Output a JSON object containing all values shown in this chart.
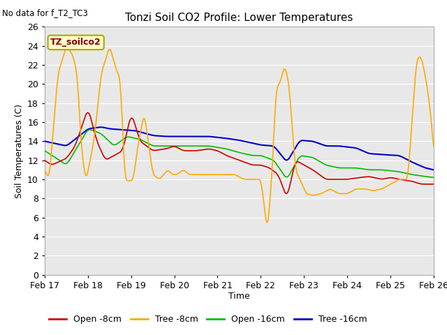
{
  "title": "Tonzi Soil CO2 Profile: Lower Temperatures",
  "subtitle": "No data for f_T2_TC3",
  "xlabel": "Time",
  "ylabel": "Soil Temperatures (C)",
  "legend_label": "TZ_soilco2",
  "ylim": [
    0,
    26
  ],
  "yticks": [
    0,
    2,
    4,
    6,
    8,
    10,
    12,
    14,
    16,
    18,
    20,
    22,
    24,
    26
  ],
  "x_tick_labels": [
    "Feb 17",
    "Feb 18",
    "Feb 19",
    "Feb 20",
    "Feb 21",
    "Feb 22",
    "Feb 23",
    "Feb 24",
    "Feb 25",
    "Feb 26"
  ],
  "fig_bg_color": "#ffffff",
  "plot_bg_color": "#e8e8e8",
  "grid_color": "#ffffff",
  "line_colors": {
    "open_8": "#cc0000",
    "tree_8": "#ffaa00",
    "open_16": "#00bb00",
    "tree_16": "#0000cc"
  },
  "legend_entries": [
    {
      "label": "Open -8cm",
      "color": "#cc0000"
    },
    {
      "label": "Tree -8cm",
      "color": "#ffaa00"
    },
    {
      "label": "Open -16cm",
      "color": "#00bb00"
    },
    {
      "label": "Tree -16cm",
      "color": "#0000cc"
    }
  ],
  "open_8_x": [
    0,
    0.15,
    0.3,
    0.5,
    0.7,
    1.0,
    1.2,
    1.4,
    1.6,
    1.8,
    2.0,
    2.2,
    2.5,
    2.8,
    3.0,
    3.2,
    3.5,
    3.8,
    4.0,
    4.2,
    4.5,
    4.8,
    5.0,
    5.2,
    5.4,
    5.6,
    5.8,
    6.0,
    6.2,
    6.5,
    6.8,
    7.0,
    7.3,
    7.5,
    7.8,
    8.0,
    8.2,
    8.5,
    8.7,
    9.0
  ],
  "open_8_y": [
    12,
    11.5,
    11.8,
    12.2,
    13.5,
    17.5,
    14,
    12,
    12.5,
    13,
    17,
    14,
    13,
    13.2,
    13.5,
    13,
    13,
    13.2,
    13,
    12.5,
    12,
    11.5,
    11.5,
    11.2,
    10.5,
    8.0,
    12,
    11.5,
    11,
    10,
    10,
    10,
    10.2,
    10.3,
    10,
    10.2,
    10,
    9.8,
    9.5,
    9.5
  ],
  "tree_8_x": [
    0,
    0.1,
    0.3,
    0.5,
    0.65,
    0.75,
    0.85,
    0.95,
    1.05,
    1.15,
    1.3,
    1.5,
    1.65,
    1.75,
    1.85,
    1.95,
    2.05,
    2.15,
    2.3,
    2.5,
    2.65,
    2.75,
    2.85,
    2.95,
    3.05,
    3.2,
    3.35,
    3.5,
    3.65,
    3.8,
    4.0,
    4.2,
    4.4,
    4.6,
    4.8,
    5.0,
    5.15,
    5.25,
    5.35,
    5.45,
    5.55,
    5.65,
    5.8,
    5.95,
    6.05,
    6.2,
    6.4,
    6.6,
    6.8,
    7.0,
    7.2,
    7.4,
    7.6,
    7.8,
    8.0,
    8.2,
    8.4,
    8.6,
    8.7,
    8.8,
    8.9,
    9.0
  ],
  "tree_8_y": [
    11,
    10,
    21,
    24,
    23,
    21,
    13,
    9.8,
    12,
    14.5,
    21,
    24,
    21.5,
    20.5,
    10,
    9.8,
    10,
    13.5,
    17,
    10.5,
    10,
    10.5,
    11,
    10.5,
    10.5,
    11,
    10.5,
    10.5,
    10.5,
    10.5,
    10.5,
    10.5,
    10.5,
    10,
    10,
    10,
    4.5,
    10,
    19.5,
    20.2,
    22,
    20,
    11,
    9.5,
    8.5,
    8.3,
    8.5,
    9.0,
    8.5,
    8.5,
    9.0,
    9.0,
    8.8,
    9.0,
    9.5,
    10,
    10,
    22.5,
    23,
    21,
    18,
    13.5
  ],
  "open_16_x": [
    0,
    0.5,
    1.0,
    1.3,
    1.6,
    1.9,
    2.2,
    2.5,
    2.8,
    3.2,
    3.5,
    3.8,
    4.2,
    4.5,
    4.8,
    5.0,
    5.3,
    5.6,
    5.9,
    6.2,
    6.5,
    6.8,
    7.2,
    7.5,
    7.8,
    8.2,
    8.5,
    8.8,
    9.0
  ],
  "open_16_y": [
    13,
    11.5,
    15.3,
    14.8,
    13.5,
    14.5,
    14.2,
    13.5,
    13.5,
    13.5,
    13.5,
    13.5,
    13.2,
    12.8,
    12.5,
    12.5,
    12,
    10,
    12.5,
    12.3,
    11.5,
    11.2,
    11.2,
    11,
    11,
    10.8,
    10.5,
    10.3,
    10.2
  ],
  "tree_16_x": [
    0,
    0.5,
    1.0,
    1.3,
    1.5,
    1.8,
    2.1,
    2.5,
    2.8,
    3.2,
    3.5,
    3.8,
    4.2,
    4.5,
    4.8,
    5.0,
    5.3,
    5.6,
    5.9,
    6.2,
    6.5,
    6.8,
    7.2,
    7.5,
    7.8,
    8.2,
    8.5,
    8.8,
    9.0
  ],
  "tree_16_y": [
    14,
    13.5,
    15.3,
    15.5,
    15.3,
    15.2,
    15.1,
    14.6,
    14.5,
    14.5,
    14.5,
    14.5,
    14.3,
    14.1,
    13.8,
    13.6,
    13.5,
    11.8,
    14.1,
    14.0,
    13.5,
    13.5,
    13.3,
    12.7,
    12.6,
    12.5,
    11.8,
    11.2,
    11.0
  ]
}
